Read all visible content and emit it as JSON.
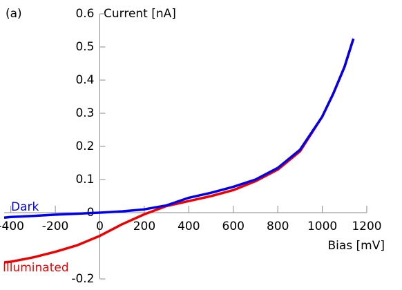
{
  "chart_data": {
    "type": "line",
    "panel_label": "(a)",
    "x_label": "Bias [mV]",
    "y_label": "Current [nA]",
    "x": [
      -430,
      -400,
      -300,
      -200,
      -100,
      0,
      100,
      200,
      300,
      400,
      500,
      600,
      700,
      800,
      900,
      1000,
      1050,
      1100,
      1140
    ],
    "series": [
      {
        "name": "Dark",
        "color": "#0000ee",
        "values": [
          -0.015,
          -0.013,
          -0.01,
          -0.006,
          -0.003,
          0.0,
          0.004,
          0.01,
          0.022,
          0.045,
          0.06,
          0.078,
          0.1,
          0.135,
          0.19,
          0.29,
          0.36,
          0.44,
          0.525
        ]
      },
      {
        "name": "Illuminated",
        "color": "#ee0000",
        "values": [
          -0.15,
          -0.148,
          -0.135,
          -0.118,
          -0.098,
          -0.07,
          -0.035,
          -0.005,
          0.02,
          0.035,
          0.05,
          0.068,
          0.095,
          0.13,
          0.185,
          0.29,
          0.36,
          0.44,
          0.525
        ]
      }
    ],
    "xlim": [
      -430,
      1200
    ],
    "ylim": [
      -0.2,
      0.6
    ],
    "xticks": [
      -400,
      -200,
      0,
      200,
      400,
      600,
      800,
      1000,
      1200
    ],
    "yticks": [
      -0.2,
      0,
      0.1,
      0.2,
      0.3,
      0.4,
      0.5,
      0.6
    ]
  }
}
